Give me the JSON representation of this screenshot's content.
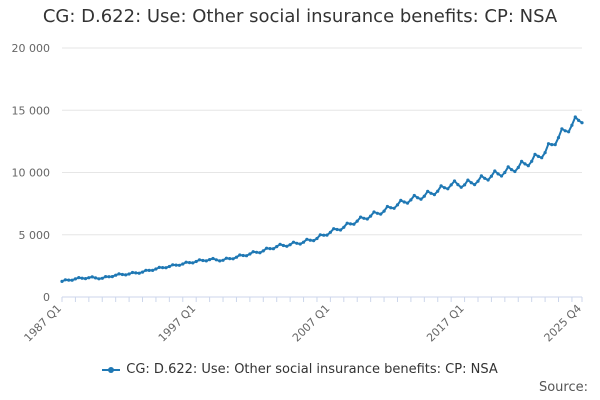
{
  "chart_data": {
    "type": "line",
    "title": "CG: D.622: Use: Other social insurance benefits: CP: NSA",
    "xlabel": "",
    "ylabel": "",
    "x_range": [
      "1987 Q1",
      "2025 Q4"
    ],
    "x_tick_labels": [
      "1987 Q1",
      "1997 Q1",
      "2007 Q1",
      "2017 Q1",
      "2025 Q4"
    ],
    "y_ticks": [
      0,
      5000,
      10000,
      15000,
      20000
    ],
    "y_tick_labels": [
      "0",
      "5 000",
      "10 000",
      "15 000",
      "20 000"
    ],
    "ylim": [
      0,
      20000
    ],
    "grid": true,
    "legend_position": "bottom",
    "series_color": "#1f78b4",
    "series": [
      {
        "name": "CG: D.622: Use: Other social insurance benefits: CP: NSA",
        "anchors": [
          [
            "1987 Q1",
            1250
          ],
          [
            "1988 Q1",
            1450
          ],
          [
            "1989 Q1",
            1550
          ],
          [
            "1990 Q1",
            1500
          ],
          [
            "1991 Q1",
            1750
          ],
          [
            "1992 Q1",
            1850
          ],
          [
            "1993 Q1",
            2000
          ],
          [
            "1994 Q1",
            2250
          ],
          [
            "1995 Q1",
            2450
          ],
          [
            "1996 Q1",
            2650
          ],
          [
            "1997 Q1",
            2850
          ],
          [
            "1998 Q1",
            3000
          ],
          [
            "1999 Q1",
            2950
          ],
          [
            "2000 Q1",
            3200
          ],
          [
            "2001 Q1",
            3450
          ],
          [
            "2002 Q1",
            3700
          ],
          [
            "2003 Q1",
            4050
          ],
          [
            "2004 Q1",
            4200
          ],
          [
            "2005 Q1",
            4400
          ],
          [
            "2006 Q1",
            4700
          ],
          [
            "2007 Q1",
            5200
          ],
          [
            "2008 Q1",
            5600
          ],
          [
            "2009 Q1",
            6100
          ],
          [
            "2010 Q1",
            6500
          ],
          [
            "2011 Q1",
            6900
          ],
          [
            "2012 Q1",
            7400
          ],
          [
            "2013 Q1",
            7800
          ],
          [
            "2014 Q1",
            8100
          ],
          [
            "2015 Q1",
            8500
          ],
          [
            "2016 Q1",
            9000
          ],
          [
            "2017 Q1",
            9000
          ],
          [
            "2018 Q1",
            9300
          ],
          [
            "2019 Q1",
            9700
          ],
          [
            "2020 Q1",
            10000
          ],
          [
            "2021 Q1",
            10400
          ],
          [
            "2022 Q1",
            10900
          ],
          [
            "2023 Q1",
            11600
          ],
          [
            "2024 Q1",
            12800
          ],
          [
            "2025 Q1",
            13800
          ],
          [
            "2025 Q4",
            14300
          ]
        ]
      }
    ]
  },
  "footer": {
    "source_label": "Source:"
  }
}
